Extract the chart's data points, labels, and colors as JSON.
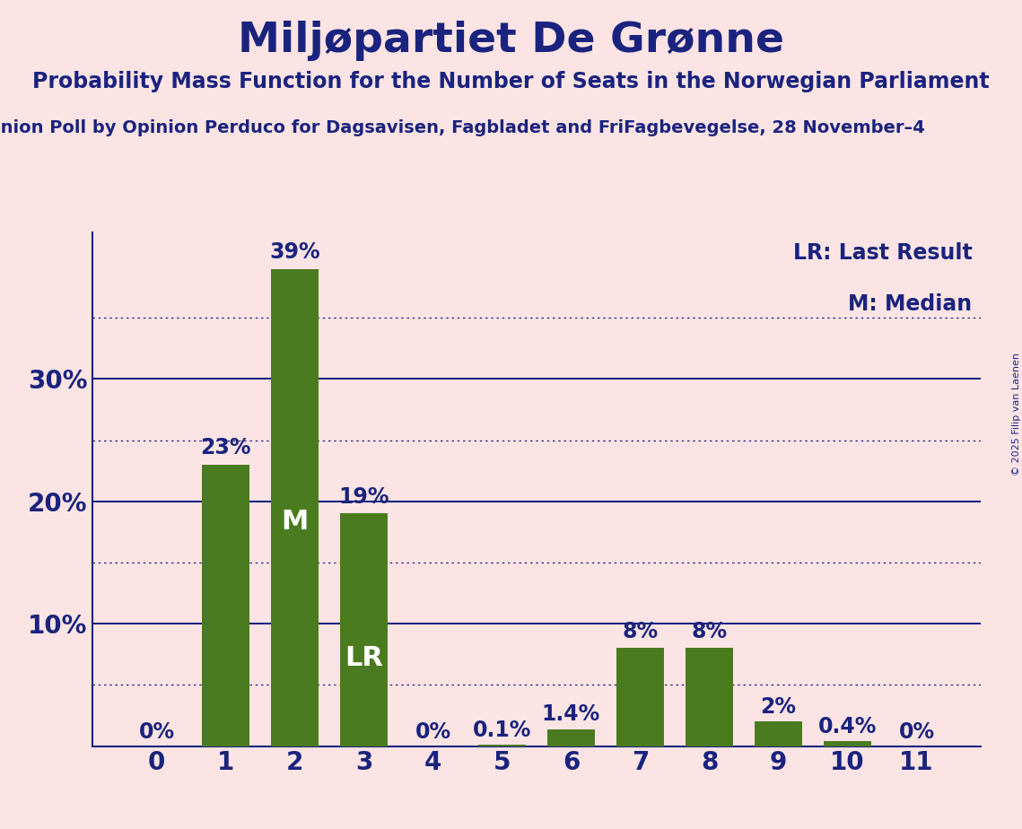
{
  "title": "Miljøpartiet De Grønne",
  "subtitle": "Probability Mass Function for the Number of Seats in the Norwegian Parliament",
  "source_line": "inion Poll by Opinion Perduco for Dagsavisen, Fagbladet and FriFagbevegelse, 28 November–4",
  "copyright": "© 2025 Filip van Laenen",
  "categories": [
    0,
    1,
    2,
    3,
    4,
    5,
    6,
    7,
    8,
    9,
    10,
    11
  ],
  "values": [
    0.0,
    23.0,
    39.0,
    19.0,
    0.0,
    0.1,
    1.4,
    8.0,
    8.0,
    2.0,
    0.4,
    0.0
  ],
  "labels": [
    "0%",
    "23%",
    "39%",
    "19%",
    "0%",
    "0.1%",
    "1.4%",
    "8%",
    "8%",
    "2%",
    "0.4%",
    "0%"
  ],
  "bar_color": "#4a7c1f",
  "background_color": "#fce4e4",
  "title_color": "#1a237e",
  "axis_color": "#1a237e",
  "label_color": "#1a237e",
  "bar_label_color_inside": "#ffffff",
  "median_bar": 2,
  "lr_bar": 3,
  "ylim_max": 42,
  "grid_color": "#1a237e",
  "dotted_grid_values": [
    5,
    15,
    25,
    35
  ],
  "solid_grid_values": [
    10,
    20,
    30
  ],
  "legend_lr": "LR: Last Result",
  "legend_m": "M: Median",
  "title_fontsize": 34,
  "subtitle_fontsize": 17,
  "source_fontsize": 14,
  "axis_tick_fontsize": 20,
  "bar_label_fontsize": 17,
  "bar_inside_fontsize": 22,
  "legend_fontsize": 17,
  "copyright_fontsize": 8
}
